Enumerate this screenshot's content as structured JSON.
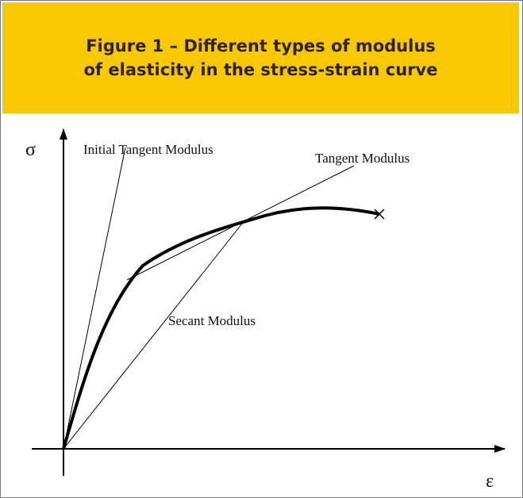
{
  "header": {
    "title_lines": [
      "Figure 1 – Different types of modulus",
      "of elasticity in the stress-strain curve"
    ]
  },
  "diagram": {
    "y_axis_label": "σ",
    "x_axis_label": "ε",
    "labels": [
      "Initial Tangent Modulus",
      "Tangent Modulus",
      "Secant Modulus"
    ]
  }
}
